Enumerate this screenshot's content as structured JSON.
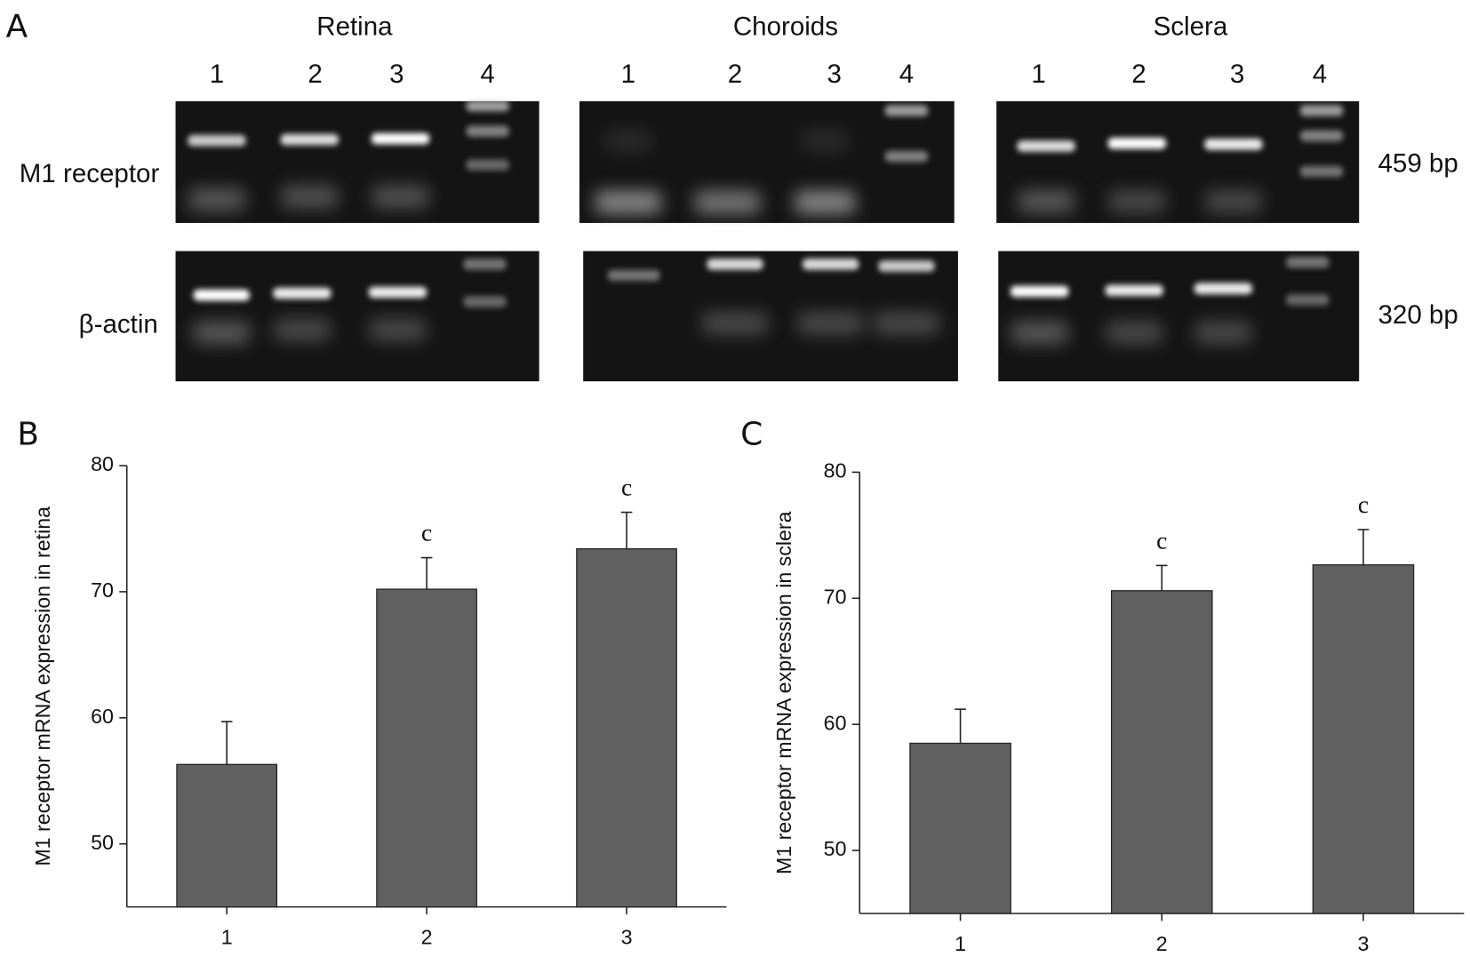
{
  "panel_a": {
    "label": "A",
    "tissues": [
      {
        "name": "Retina",
        "lanes": [
          "1",
          "2",
          "3",
          "4"
        ]
      },
      {
        "name": "Choroids",
        "lanes": [
          "1",
          "2",
          "3",
          "4"
        ]
      },
      {
        "name": "Sclera",
        "lanes": [
          "1",
          "2",
          "3",
          "4"
        ]
      }
    ],
    "rows": [
      "M1 receptor",
      "β-actin"
    ],
    "sizes": [
      "459 bp",
      "320 bp"
    ]
  },
  "chart_data": [
    {
      "type": "bar",
      "panel": "B",
      "ylabel": "M1 receptor mRNA expression in retina",
      "categories": [
        "1",
        "2",
        "3"
      ],
      "values": [
        56.3,
        70.2,
        73.4
      ],
      "errors": [
        3.4,
        2.5,
        2.9
      ],
      "annotations": [
        null,
        "c",
        "c"
      ],
      "color": "#606060",
      "ylim": [
        45,
        80
      ],
      "yticks": [
        50,
        60,
        70,
        80
      ]
    },
    {
      "type": "bar",
      "panel": "C",
      "ylabel": "M1 receptor mRNA expression in sclera",
      "categories": [
        "1",
        "2",
        "3"
      ],
      "values": [
        58.5,
        70.6,
        72.65
      ],
      "errors": [
        2.7,
        2.0,
        2.8
      ],
      "annotations": [
        null,
        "c",
        "c"
      ],
      "color": "#606060",
      "ylim": [
        45,
        80
      ],
      "yticks": [
        50,
        60,
        70,
        80
      ]
    }
  ]
}
